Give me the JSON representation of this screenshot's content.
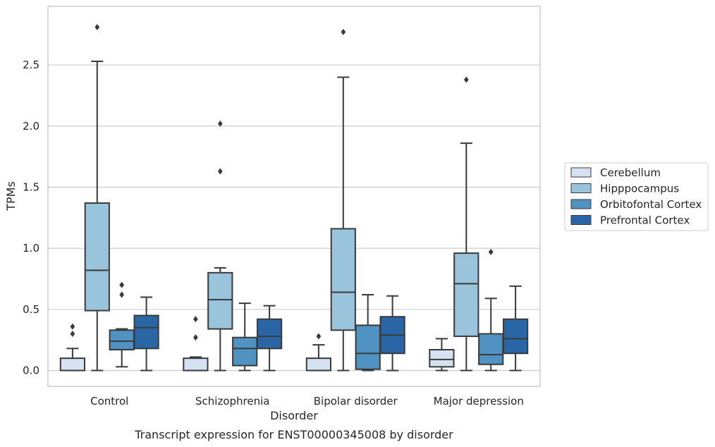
{
  "chart_data": {
    "type": "boxplot",
    "title": "",
    "caption": "Transcript expression for ENST00000345008 by disorder",
    "xlabel": "Disorder",
    "ylabel": "TPMs",
    "ylim": [
      -0.13,
      2.98
    ],
    "yticks": [
      "0.0",
      "0.5",
      "1.0",
      "1.5",
      "2.0",
      "2.5"
    ],
    "ytick_values": [
      0,
      0.5,
      1.0,
      1.5,
      2.0,
      2.5
    ],
    "grid": true,
    "legend_position": "right",
    "categories": [
      "Control",
      "Schizophrenia",
      "Bipolar disorder",
      "Major depression"
    ],
    "series": [
      {
        "name": "Cerebellum",
        "color": "#d4e2f1",
        "boxes": [
          {
            "q1": 0.0,
            "median": 0.0,
            "q3": 0.1,
            "whislo": 0.0,
            "whishi": 0.18,
            "fliers": [
              0.3,
              0.36
            ]
          },
          {
            "q1": 0.0,
            "median": 0.0,
            "q3": 0.1,
            "whislo": 0.0,
            "whishi": 0.11,
            "fliers": [
              0.27,
              0.42
            ]
          },
          {
            "q1": 0.0,
            "median": 0.0,
            "q3": 0.1,
            "whislo": 0.0,
            "whishi": 0.21,
            "fliers": [
              0.28
            ]
          },
          {
            "q1": 0.03,
            "median": 0.09,
            "q3": 0.17,
            "whislo": 0.0,
            "whishi": 0.26,
            "fliers": []
          }
        ]
      },
      {
        "name": "Hipppocampus",
        "color": "#9ac3dc",
        "boxes": [
          {
            "q1": 0.49,
            "median": 0.82,
            "q3": 1.37,
            "whislo": 0.0,
            "whishi": 2.53,
            "fliers": [
              2.81
            ]
          },
          {
            "q1": 0.34,
            "median": 0.58,
            "q3": 0.8,
            "whislo": 0.0,
            "whishi": 0.84,
            "fliers": [
              1.63,
              2.02
            ]
          },
          {
            "q1": 0.33,
            "median": 0.64,
            "q3": 1.16,
            "whislo": 0.0,
            "whishi": 2.4,
            "fliers": [
              2.77
            ]
          },
          {
            "q1": 0.28,
            "median": 0.71,
            "q3": 0.96,
            "whislo": 0.0,
            "whishi": 1.86,
            "fliers": [
              2.38
            ]
          }
        ]
      },
      {
        "name": "Orbitofontal Cortex",
        "color": "#5093c3",
        "boxes": [
          {
            "q1": 0.17,
            "median": 0.24,
            "q3": 0.33,
            "whislo": 0.03,
            "whishi": 0.34,
            "fliers": [
              0.62,
              0.7
            ]
          },
          {
            "q1": 0.04,
            "median": 0.18,
            "q3": 0.27,
            "whislo": 0.0,
            "whishi": 0.55,
            "fliers": []
          },
          {
            "q1": 0.01,
            "median": 0.14,
            "q3": 0.37,
            "whislo": 0.0,
            "whishi": 0.62,
            "fliers": []
          },
          {
            "q1": 0.05,
            "median": 0.13,
            "q3": 0.3,
            "whislo": 0.0,
            "whishi": 0.59,
            "fliers": [
              0.97
            ]
          }
        ]
      },
      {
        "name": "Prefrontal Cortex",
        "color": "#2a66a6",
        "boxes": [
          {
            "q1": 0.18,
            "median": 0.35,
            "q3": 0.45,
            "whislo": 0.0,
            "whishi": 0.6,
            "fliers": []
          },
          {
            "q1": 0.18,
            "median": 0.28,
            "q3": 0.42,
            "whislo": 0.0,
            "whishi": 0.53,
            "fliers": []
          },
          {
            "q1": 0.14,
            "median": 0.29,
            "q3": 0.44,
            "whislo": 0.0,
            "whishi": 0.61,
            "fliers": []
          },
          {
            "q1": 0.14,
            "median": 0.26,
            "q3": 0.42,
            "whislo": 0.0,
            "whishi": 0.69,
            "fliers": []
          }
        ]
      }
    ],
    "colors": {
      "grid": "#cccccc",
      "frame": "#cccccc",
      "line": "#3a3a3a"
    }
  }
}
